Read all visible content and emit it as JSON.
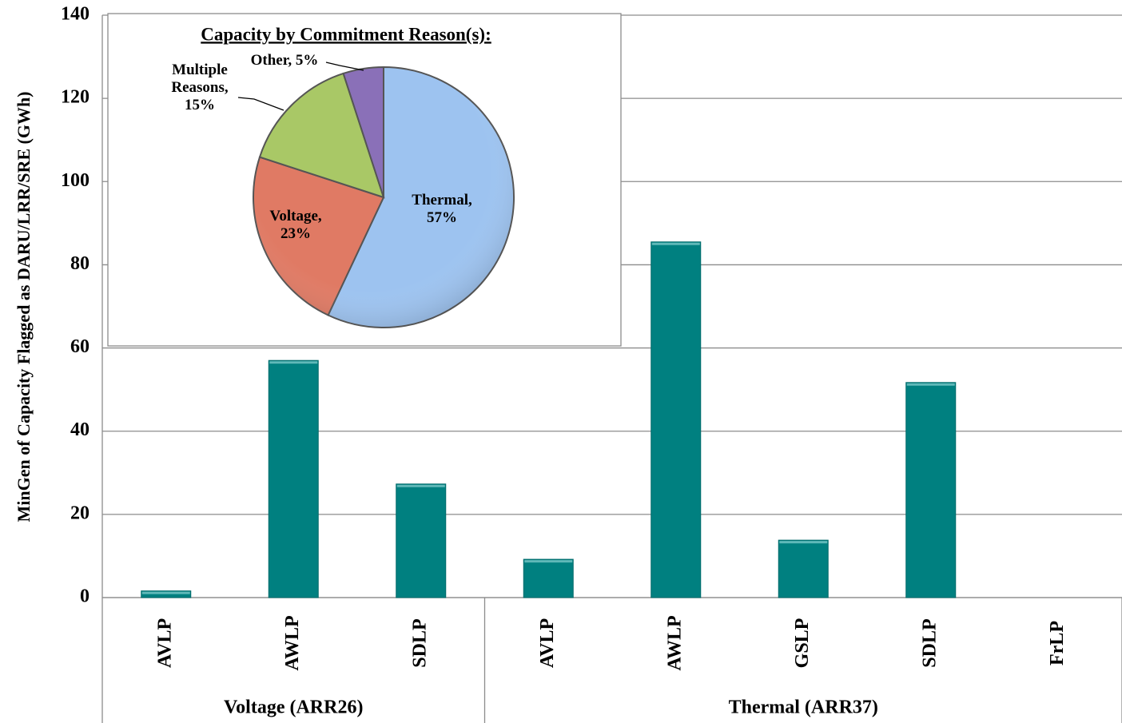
{
  "chart_data": [
    {
      "type": "bar",
      "y_label": "MinGen of Capacity Flagged as DARU/LRR/SRE (GWh)",
      "groups": [
        {
          "name": "Voltage (ARR26)",
          "categories": [
            "AVLP",
            "AWLP",
            "SDLP"
          ],
          "values": [
            1.6,
            57,
            27.3
          ]
        },
        {
          "name": "Thermal (ARR37)",
          "categories": [
            "AVLP",
            "AWLP",
            "GSLP",
            "SDLP",
            "FrLP"
          ],
          "values": [
            9.2,
            85.5,
            13.8,
            51.7,
            0
          ]
        }
      ],
      "color": "#008080",
      "ylim": [
        0,
        140
      ],
      "yticks": [
        0,
        20,
        40,
        60,
        80,
        100,
        120,
        140
      ],
      "grid": true
    },
    {
      "type": "pie",
      "title": "Capacity by Commitment Reason(s):",
      "categories": [
        "Thermal,",
        "Voltage,",
        "Multiple Reasons,",
        "Other,"
      ],
      "values": [
        57,
        23,
        15,
        5
      ],
      "value_labels": [
        "57%",
        "23%",
        "15%",
        "5%"
      ],
      "colors": [
        "#9dc3f0",
        "#e07a64",
        "#a9c866",
        "#8a70b8"
      ]
    }
  ]
}
